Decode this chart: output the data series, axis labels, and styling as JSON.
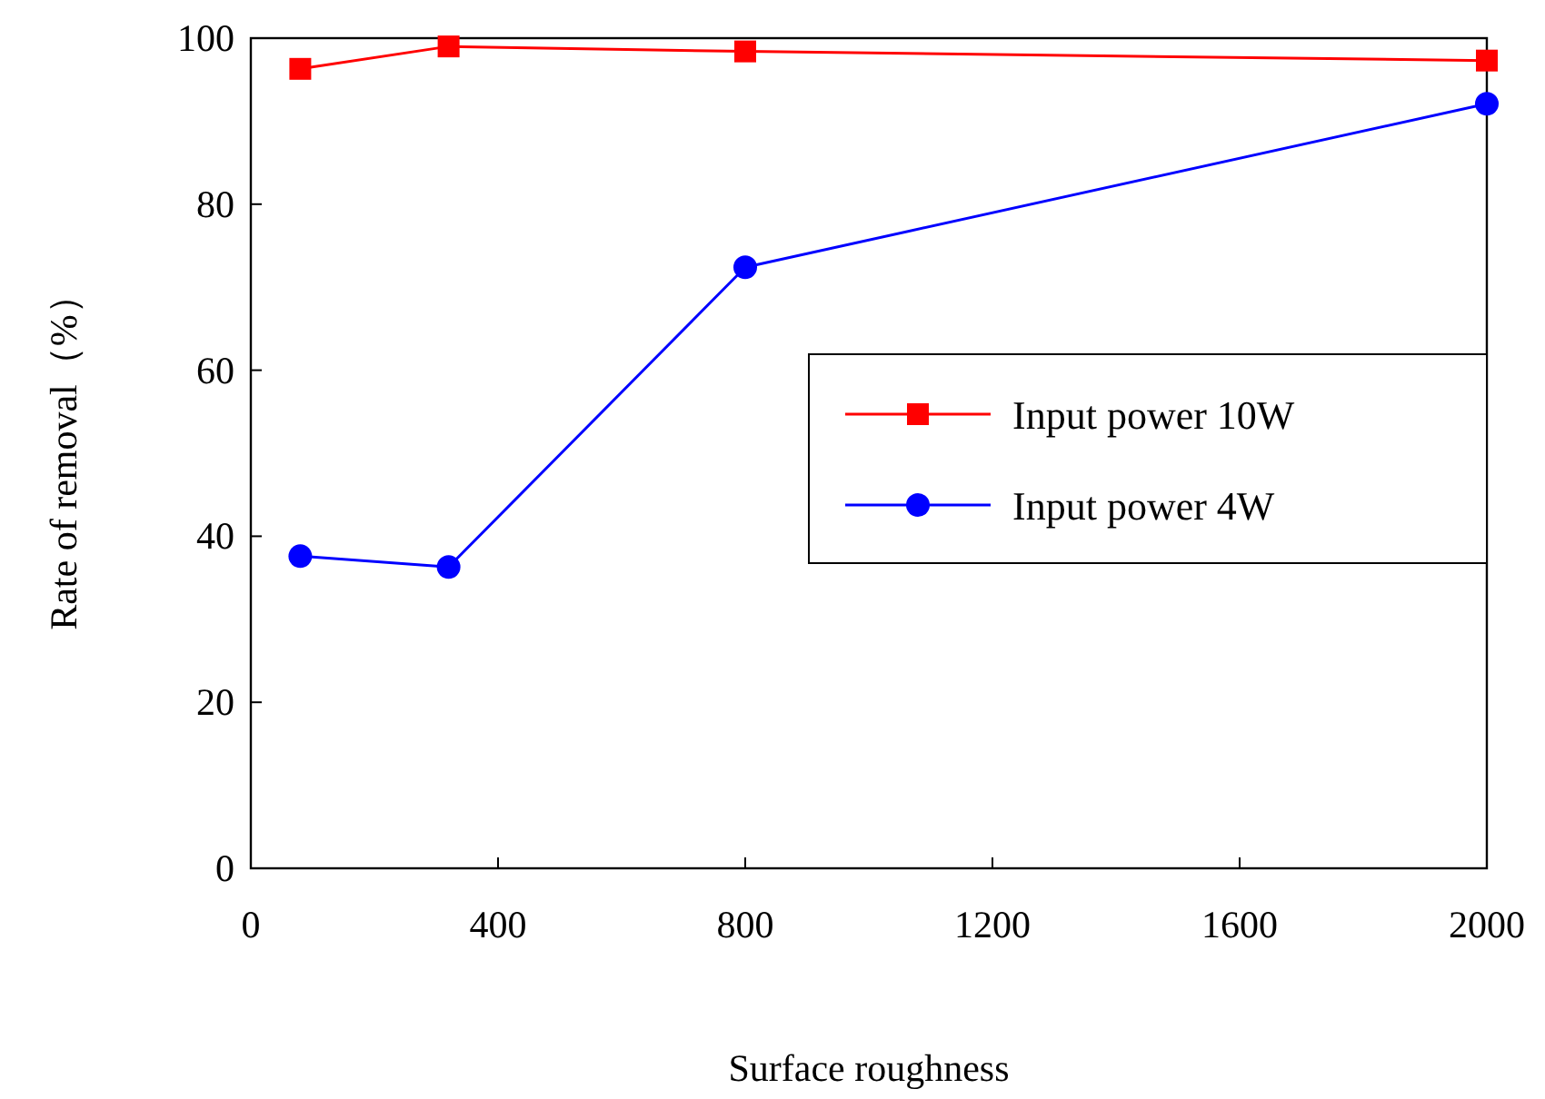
{
  "chart_data": {
    "type": "line",
    "xlabel": "Surface roughness",
    "ylabel": "Rate of removal（%）",
    "xlim": [
      0,
      2000
    ],
    "xticks": [
      0,
      400,
      800,
      1200,
      1600,
      2000
    ],
    "ylim": [
      0,
      100
    ],
    "yticks": [
      0,
      20,
      40,
      60,
      80,
      100
    ],
    "grid": false,
    "legend": "right",
    "series": [
      {
        "name": "Input power 10W",
        "color": "#ff0000",
        "marker": "square",
        "x": [
          80,
          320,
          800,
          2000
        ],
        "values": [
          96.3,
          99,
          98.4,
          97.3
        ]
      },
      {
        "name": "Input power 4W",
        "color": "#0000ff",
        "marker": "circle",
        "x": [
          80,
          320,
          800,
          2000
        ],
        "values": [
          37.6,
          36.3,
          72.4,
          92.1
        ]
      }
    ]
  }
}
